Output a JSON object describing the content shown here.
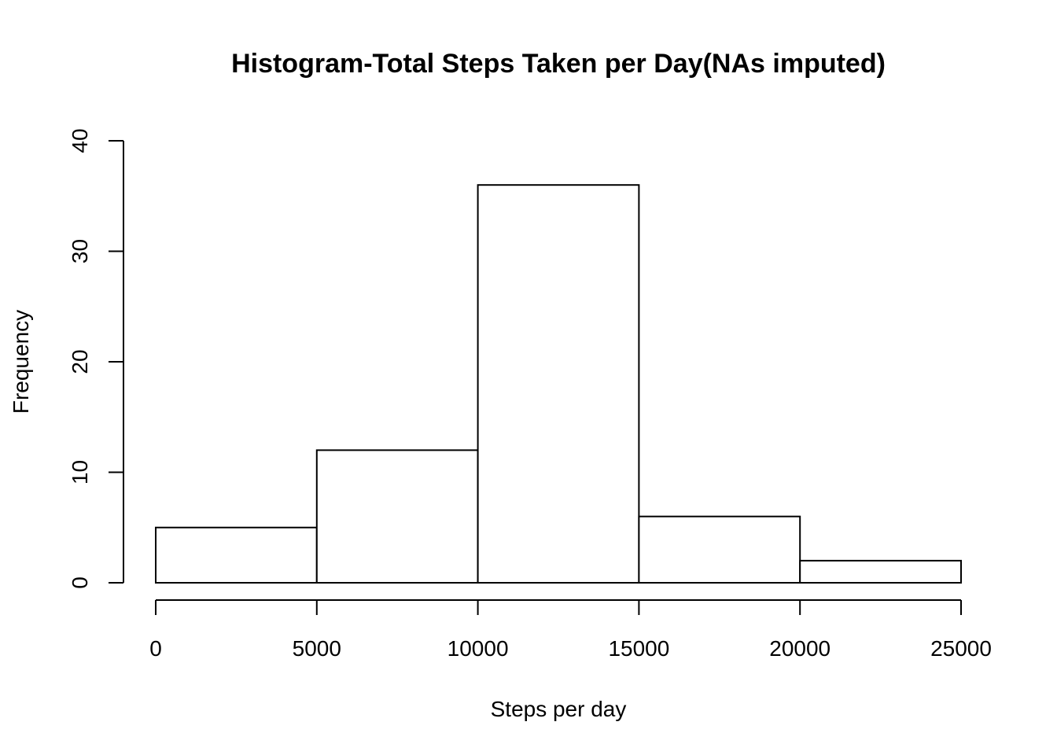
{
  "chart_data": {
    "type": "bar",
    "title": "Histogram-Total Steps Taken per Day(NAs imputed)",
    "xlabel": "Steps per day",
    "ylabel": "Frequency",
    "bins": [
      {
        "from": 0,
        "to": 5000,
        "count": 5
      },
      {
        "from": 5000,
        "to": 10000,
        "count": 12
      },
      {
        "from": 10000,
        "to": 15000,
        "count": 36
      },
      {
        "from": 15000,
        "to": 20000,
        "count": 6
      },
      {
        "from": 20000,
        "to": 25000,
        "count": 2
      }
    ],
    "xlim": [
      0,
      25000
    ],
    "ylim": [
      0,
      40
    ],
    "x_ticks": [
      0,
      5000,
      10000,
      15000,
      20000,
      25000
    ],
    "y_ticks": [
      0,
      10,
      20,
      30,
      40
    ],
    "grid": false,
    "bar_fill": "#ffffff",
    "bar_stroke": "#000000"
  }
}
